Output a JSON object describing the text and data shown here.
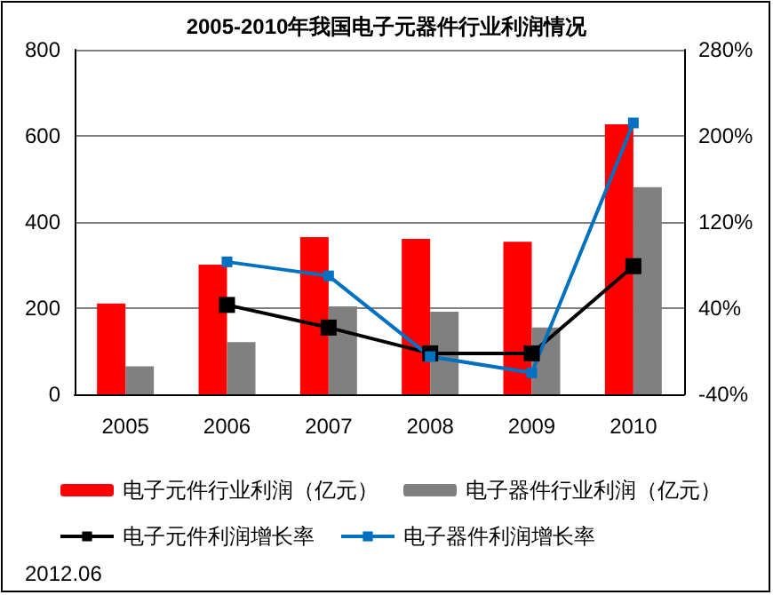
{
  "chart_data": {
    "type": "bar",
    "title": "2005-2010年我国电子元器件行业利润情况",
    "categories": [
      "2005",
      "2006",
      "2007",
      "2008",
      "2009",
      "2010"
    ],
    "series": [
      {
        "name": "电子元件行业利润（亿元）",
        "color": "#ff0000",
        "values": [
          211,
          301,
          365,
          361,
          354,
          627
        ]
      },
      {
        "name": "电子器件行业利润（亿元）",
        "color": "#808080",
        "values": [
          65,
          121,
          204,
          192,
          155,
          481
        ]
      },
      {
        "name": "电子元件利润增长率",
        "type": "line",
        "axis": "y2",
        "color": "#000000",
        "values": [
          null,
          43,
          22,
          -2,
          -2,
          79
        ]
      },
      {
        "name": "电子器件利润增长率",
        "type": "line",
        "axis": "y2",
        "color": "#0070c0",
        "values": [
          null,
          83,
          70,
          -5,
          -20,
          212
        ]
      }
    ],
    "ylim": [
      0,
      800
    ],
    "yticks": [
      0,
      200,
      400,
      600,
      800
    ],
    "y2lim": [
      -40,
      280
    ],
    "y2ticks": [
      {
        "value": -40,
        "label": "-40%"
      },
      {
        "value": 40,
        "label": "40%"
      },
      {
        "value": 120,
        "label": "120%"
      },
      {
        "value": 200,
        "label": "200%"
      },
      {
        "value": 280,
        "label": "280%"
      }
    ],
    "grid": "y",
    "legend": "bottom",
    "marker": "square",
    "line_style": "solid",
    "annotations": [
      "2012.06"
    ]
  }
}
